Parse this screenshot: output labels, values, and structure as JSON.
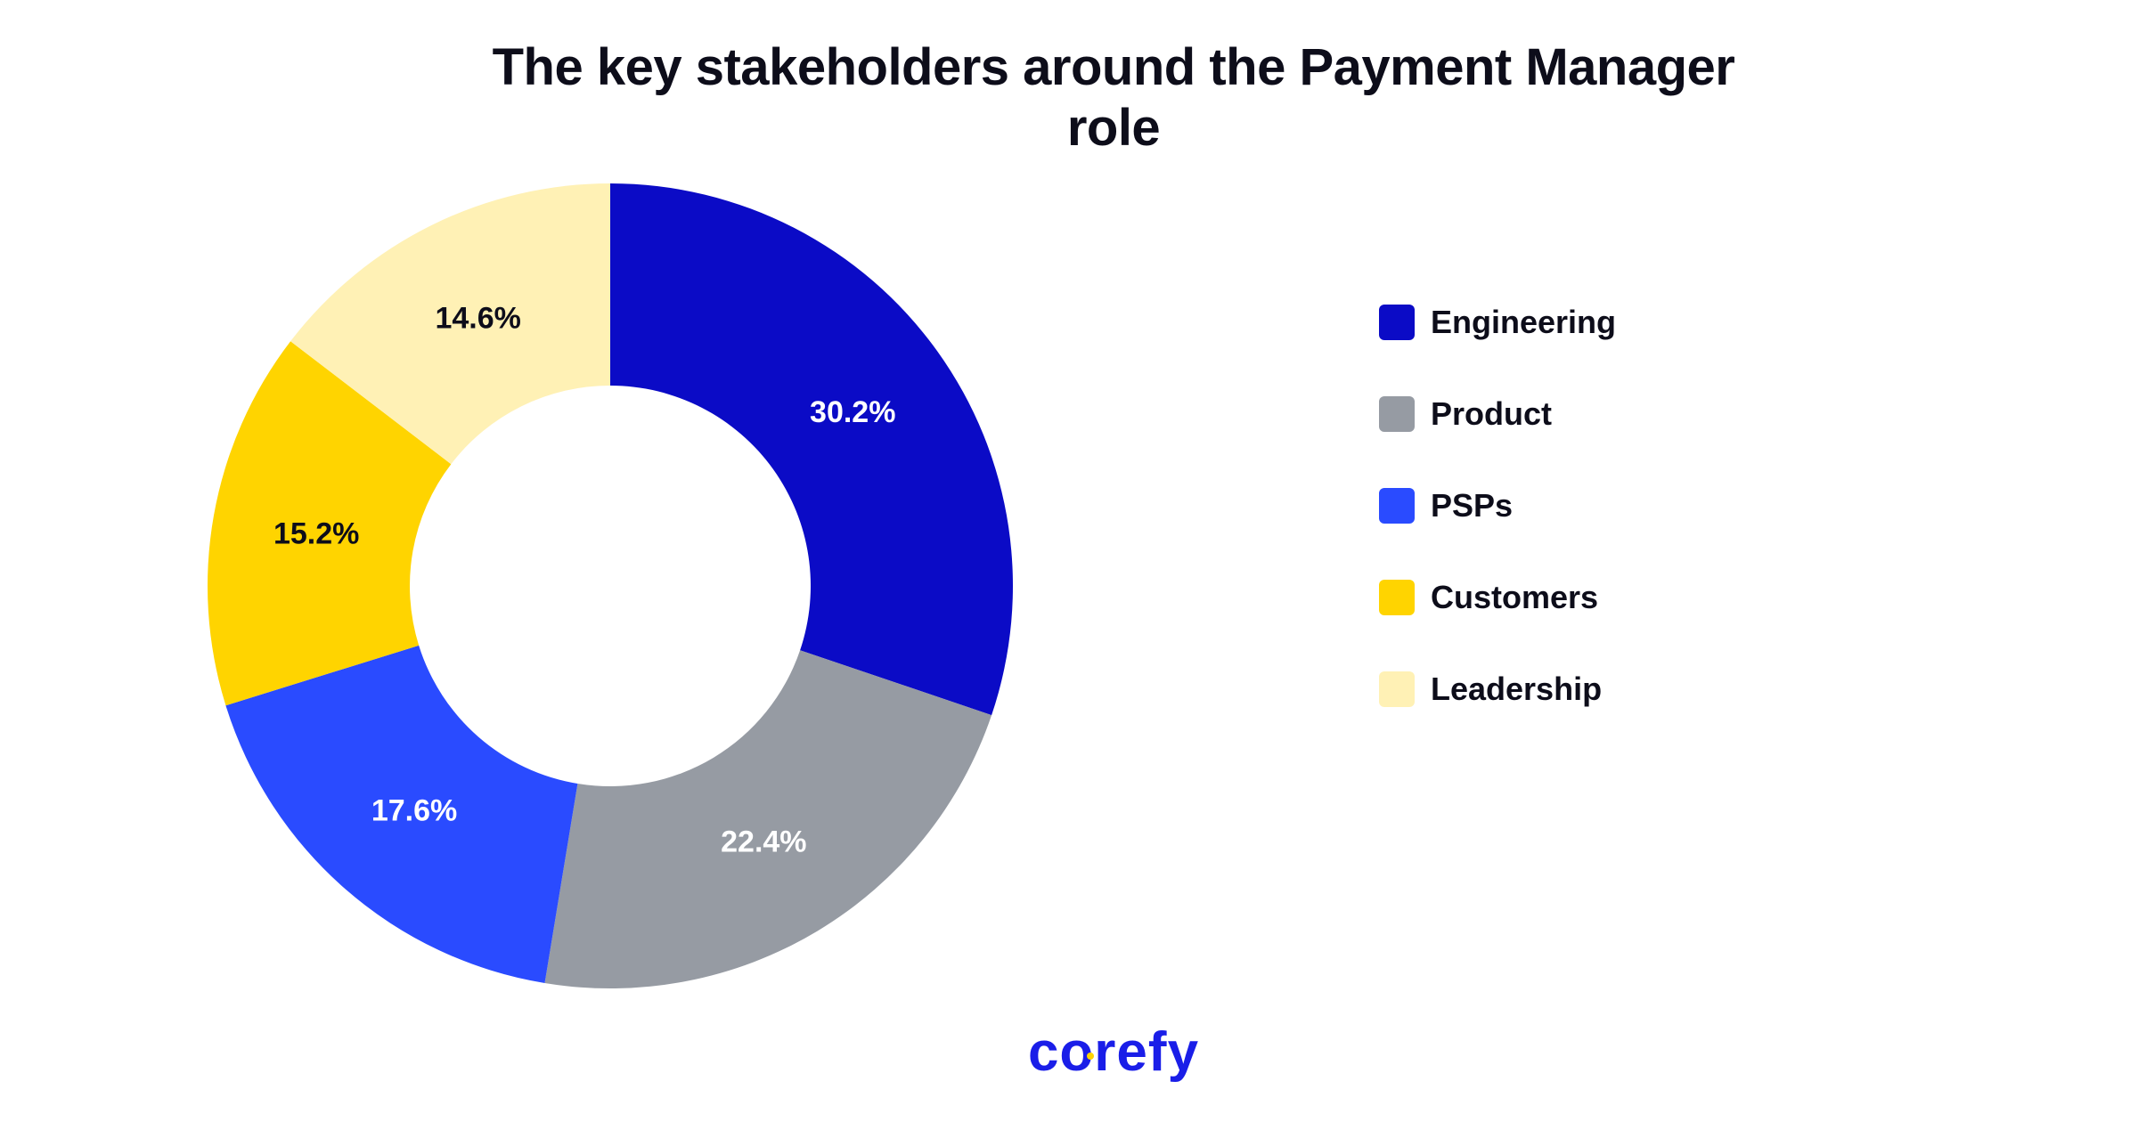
{
  "chart_data": {
    "type": "pie",
    "title": "The key stakeholders around the Payment Manager role",
    "categories": [
      "Engineering",
      "Product",
      "PSPs",
      "Customers",
      "Leadership"
    ],
    "values": [
      30.2,
      22.4,
      17.6,
      15.2,
      14.6
    ],
    "value_labels": [
      "30.2%",
      "22.4%",
      "17.6%",
      "15.2%",
      "14.6%"
    ],
    "colors": [
      "#0b0bc6",
      "#969ba3",
      "#2a4bff",
      "#ffd400",
      "#fff1b5"
    ],
    "label_colors": [
      "#ffffff",
      "#ffffff",
      "#ffffff",
      "#0d0d1a",
      "#0d0d1a"
    ],
    "legend_position": "right",
    "style": "donut"
  },
  "brand": {
    "logo_text": "corefy",
    "logo_color": "#1a1ee8",
    "logo_dot_color": "#ffd400"
  }
}
